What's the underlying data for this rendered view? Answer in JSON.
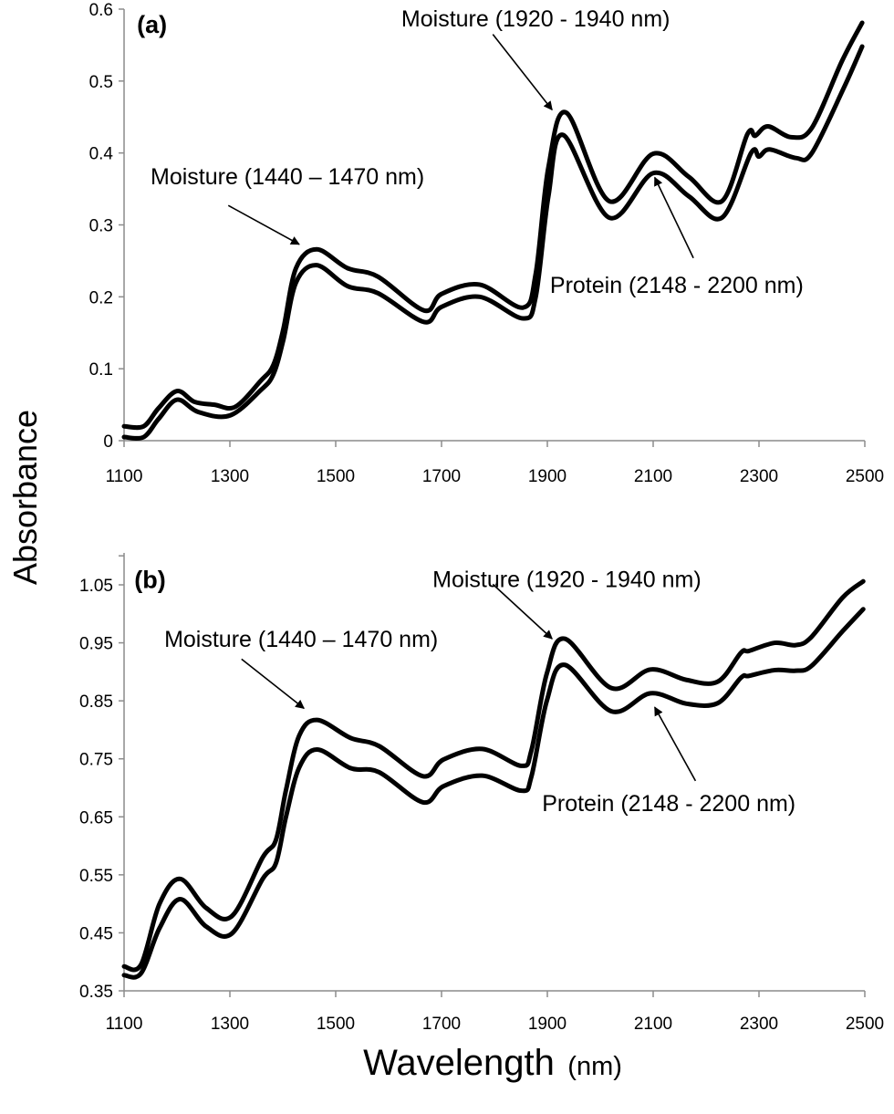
{
  "chart_data": [
    {
      "type": "line",
      "panel_label": "(a)",
      "xlim": [
        1100,
        2500
      ],
      "ylim": [
        0,
        0.6
      ],
      "x_ticks": [
        1100,
        1300,
        1500,
        1700,
        1900,
        2100,
        2300,
        2500
      ],
      "y_ticks": [
        "0",
        "0.1",
        "0.2",
        "0.3",
        "0.4",
        "0.5",
        "0.6"
      ],
      "grid": false,
      "series": [
        {
          "x": [
            1100,
            1137,
            1165,
            1200,
            1233,
            1271,
            1310,
            1358,
            1382,
            1401,
            1425,
            1464,
            1522,
            1580,
            1667,
            1700,
            1772,
            1854,
            1878,
            1902,
            1936,
            2017,
            2100,
            2167,
            2230,
            2278,
            2293,
            2317,
            2361,
            2400,
            2457,
            2495
          ],
          "y": [
            0.02,
            0.02,
            0.045,
            0.069,
            0.054,
            0.05,
            0.047,
            0.083,
            0.105,
            0.155,
            0.24,
            0.266,
            0.24,
            0.228,
            0.181,
            0.204,
            0.217,
            0.185,
            0.232,
            0.38,
            0.456,
            0.333,
            0.399,
            0.367,
            0.333,
            0.426,
            0.424,
            0.437,
            0.422,
            0.435,
            0.528,
            0.581
          ]
        },
        {
          "x": [
            1100,
            1137,
            1165,
            1200,
            1240,
            1300,
            1358,
            1382,
            1401,
            1425,
            1464,
            1522,
            1580,
            1667,
            1700,
            1772,
            1854,
            1878,
            1902,
            1930,
            2017,
            2100,
            2167,
            2230,
            2285,
            2300,
            2320,
            2370,
            2400,
            2460,
            2495
          ],
          "y": [
            0.005,
            0.005,
            0.03,
            0.057,
            0.04,
            0.035,
            0.07,
            0.092,
            0.14,
            0.22,
            0.244,
            0.215,
            0.205,
            0.165,
            0.186,
            0.2,
            0.17,
            0.2,
            0.34,
            0.425,
            0.31,
            0.372,
            0.34,
            0.31,
            0.4,
            0.395,
            0.405,
            0.393,
            0.4,
            0.49,
            0.548
          ]
        }
      ],
      "annotations": [
        {
          "text": "Moisture (1440 – 1470  nm)",
          "text_at": [
            1150,
            0.368
          ],
          "arrow_from": [
            1297,
            0.327
          ],
          "arrow_to": [
            1431,
            0.273
          ]
        },
        {
          "text": "Moisture (1920 - 1940 nm)",
          "text_at": [
            1624,
            0.587
          ],
          "arrow_from": [
            1797,
            0.565
          ],
          "arrow_to": [
            1909,
            0.46
          ]
        },
        {
          "text": "Protein (2148 - 2200 nm)",
          "text_at": [
            1905,
            0.217
          ],
          "arrow_from": [
            2176,
            0.254
          ],
          "arrow_to": [
            2103,
            0.366
          ]
        }
      ]
    },
    {
      "type": "line",
      "panel_label": "(b)",
      "xlim": [
        1100,
        2500
      ],
      "ylim": [
        0.35,
        1.1
      ],
      "x_ticks": [
        1100,
        1300,
        1500,
        1700,
        1900,
        2100,
        2300,
        2500
      ],
      "y_ticks": [
        "0.35",
        "0.45",
        "0.55",
        "0.65",
        "0.75",
        "0.85",
        "0.95",
        "1.05"
      ],
      "grid": false,
      "series": [
        {
          "x": [
            1100,
            1132,
            1167,
            1206,
            1255,
            1304,
            1362,
            1387,
            1406,
            1431,
            1465,
            1528,
            1582,
            1665,
            1704,
            1777,
            1851,
            1870,
            1899,
            1933,
            2021,
            2095,
            2163,
            2222,
            2266,
            2281,
            2330,
            2369,
            2399,
            2458,
            2497
          ],
          "y": [
            0.392,
            0.395,
            0.5,
            0.543,
            0.493,
            0.479,
            0.58,
            0.61,
            0.696,
            0.79,
            0.817,
            0.786,
            0.772,
            0.72,
            0.749,
            0.767,
            0.738,
            0.765,
            0.897,
            0.957,
            0.872,
            0.904,
            0.886,
            0.883,
            0.933,
            0.936,
            0.95,
            0.946,
            0.96,
            1.028,
            1.056
          ]
        },
        {
          "x": [
            1100,
            1132,
            1167,
            1206,
            1255,
            1304,
            1362,
            1387,
            1406,
            1431,
            1465,
            1528,
            1582,
            1665,
            1704,
            1777,
            1851,
            1870,
            1899,
            1933,
            2021,
            2095,
            2163,
            2222,
            2266,
            2281,
            2330,
            2369,
            2399,
            2458,
            2497
          ],
          "y": [
            0.377,
            0.38,
            0.458,
            0.508,
            0.461,
            0.449,
            0.543,
            0.57,
            0.65,
            0.735,
            0.766,
            0.734,
            0.727,
            0.675,
            0.703,
            0.721,
            0.695,
            0.72,
            0.85,
            0.912,
            0.832,
            0.863,
            0.845,
            0.846,
            0.89,
            0.893,
            0.903,
            0.902,
            0.91,
            0.97,
            1.008
          ]
        }
      ],
      "annotations": [
        {
          "text": "Moisture (1440 – 1470  nm)",
          "text_at": [
            1176,
            0.957
          ],
          "arrow_from": [
            1322,
            0.922
          ],
          "arrow_to": [
            1440,
            0.837
          ]
        },
        {
          "text": "Moisture (1920 - 1940 nm)",
          "text_at": [
            1683,
            1.06
          ],
          "arrow_from": [
            1797,
            1.051
          ],
          "arrow_to": [
            1909,
            0.957
          ]
        },
        {
          "text": "Protein (2148 - 2200 nm)",
          "text_at": [
            1890,
            0.674
          ],
          "arrow_from": [
            2180,
            0.712
          ],
          "arrow_to": [
            2103,
            0.839
          ]
        }
      ]
    }
  ],
  "ylabel": "Absorbance",
  "xlabel": "Wavelength",
  "xlabel_unit": "(nm)",
  "colors": {
    "line": "#000000",
    "axis": "#8c8c8c"
  }
}
